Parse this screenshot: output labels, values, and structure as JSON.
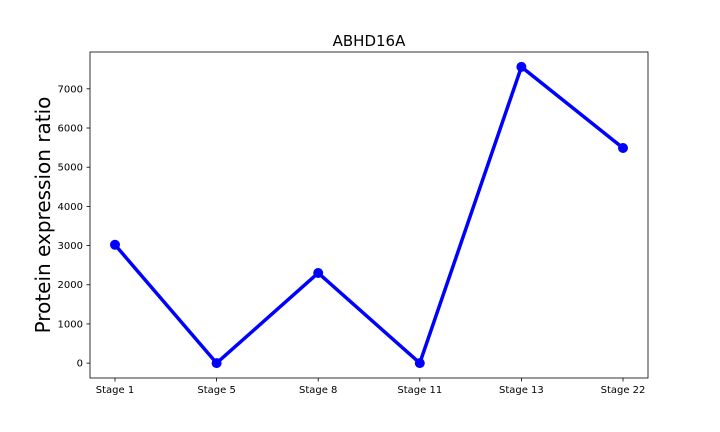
{
  "chart_data": {
    "type": "line",
    "title": "ABHD16A",
    "xlabel": "",
    "ylabel": "Protein expression ratio",
    "categories": [
      "Stage 1",
      "Stage 5",
      "Stage 8",
      "Stage 11",
      "Stage 13",
      "Stage 22"
    ],
    "series": [
      {
        "values": [
          3020,
          0,
          2300,
          0,
          7560,
          5490
        ]
      }
    ],
    "yticks": [
      0,
      1000,
      2000,
      3000,
      4000,
      5000,
      6000,
      7000
    ],
    "ylim": [
      -380,
      7940
    ],
    "grid": false,
    "line_color": "#0000ff",
    "marker": "circle"
  }
}
